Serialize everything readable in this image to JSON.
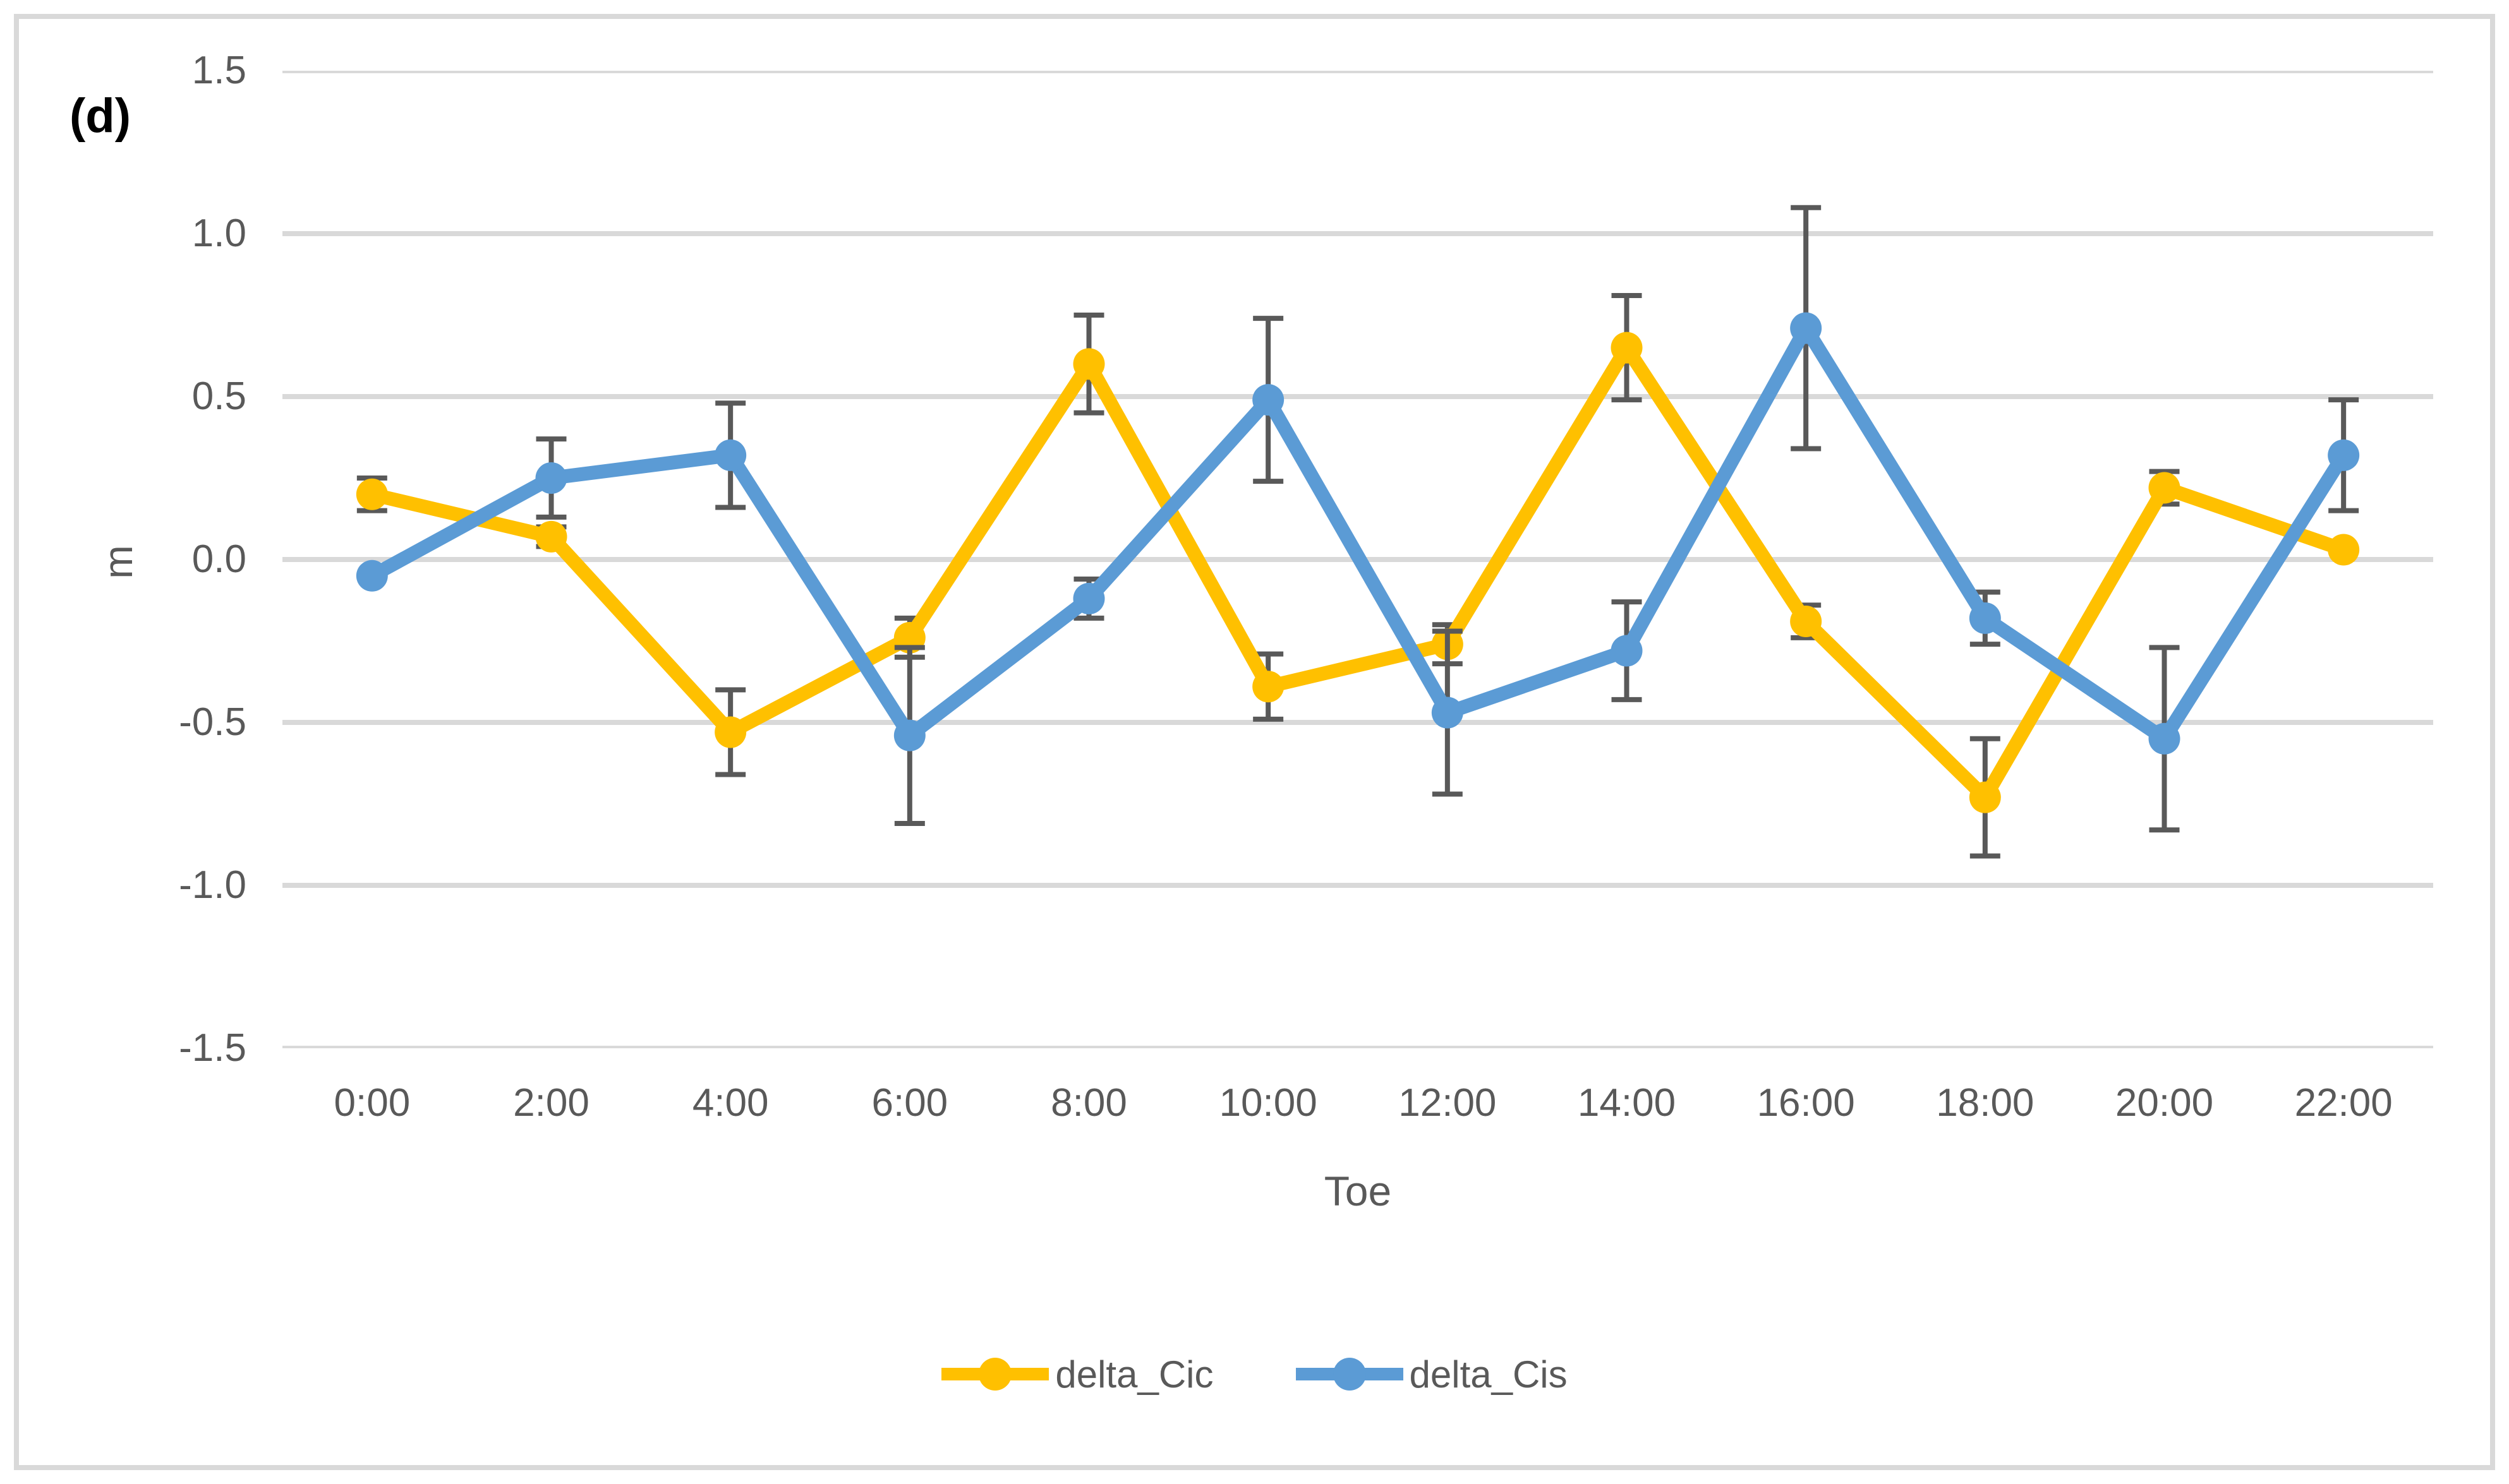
{
  "panel_label": "(d)",
  "chart_data": {
    "type": "line",
    "title": "",
    "xlabel": "Toe",
    "ylabel": "m",
    "categories": [
      "0:00",
      "2:00",
      "4:00",
      "6:00",
      "8:00",
      "10:00",
      "12:00",
      "14:00",
      "16:00",
      "18:00",
      "20:00",
      "22:00"
    ],
    "series": [
      {
        "name": "delta_Cic",
        "color": "#FFC000",
        "values": [
          0.2,
          0.07,
          -0.53,
          -0.24,
          0.6,
          -0.39,
          -0.26,
          0.65,
          -0.19,
          -0.73,
          0.22,
          0.03
        ],
        "errors": [
          0.05,
          0.03,
          0.13,
          0.06,
          0.15,
          0.1,
          0.06,
          0.16,
          0.05,
          0.18,
          0.05,
          0
        ]
      },
      {
        "name": "delta_Cis",
        "color": "#5B9BD5",
        "values": [
          -0.05,
          0.25,
          0.32,
          -0.54,
          -0.12,
          0.49,
          -0.47,
          -0.28,
          0.71,
          -0.18,
          -0.55,
          0.32
        ],
        "errors": [
          0,
          0.12,
          0.16,
          0.27,
          0.06,
          0.25,
          0.25,
          0.15,
          0.37,
          0.08,
          0.28,
          0.17
        ]
      }
    ],
    "ylim": [
      -1.5,
      1.5
    ],
    "yticks": [
      1.5,
      1.0,
      0.5,
      0.0,
      -0.5,
      -1.0,
      -1.5
    ],
    "ytick_labels": [
      "1.5",
      "1.0",
      "0.5",
      "0.0",
      "-0.5",
      "-1.0",
      "-1.5"
    ],
    "grid": true,
    "legend_position": "bottom",
    "gridline_color": "#D9D9D9",
    "error_bar_color": "#595959",
    "text_color": "#595959"
  }
}
